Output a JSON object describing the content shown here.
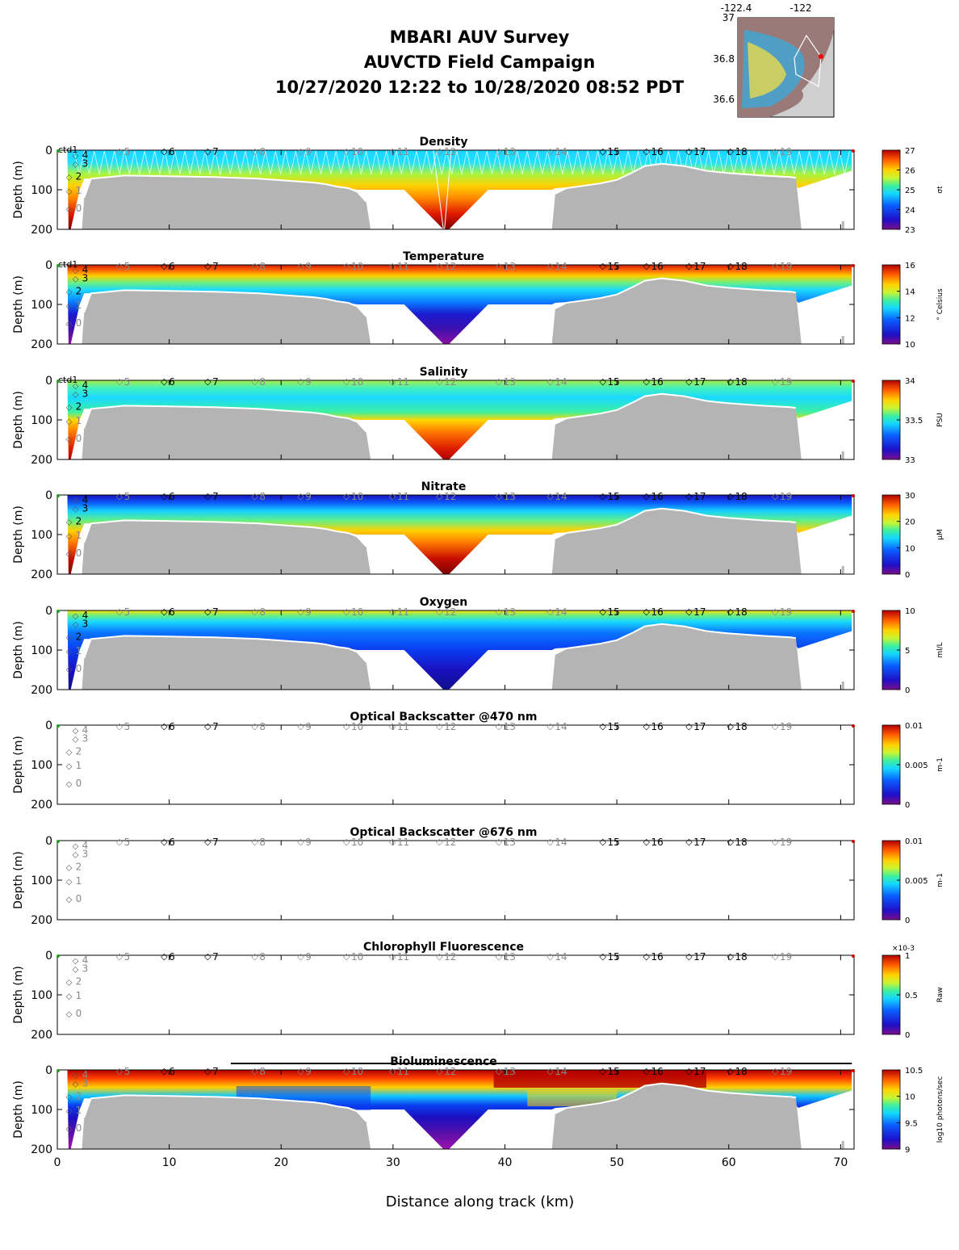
{
  "header": {
    "lines": [
      "MBARI AUV Survey",
      "AUVCTD Field Campaign",
      "10/27/2020 12:22  to 10/28/2020 08:52 PDT"
    ]
  },
  "inset_map": {
    "lon_ticks": [
      "-122.4",
      "-122"
    ],
    "lat_ticks": [
      "37",
      "36.8",
      "36.6"
    ],
    "colors": {
      "land": "#9a7a78",
      "ocean": "#cfcfcf"
    }
  },
  "xaxis": {
    "label": "Distance along track (km)",
    "ticks": [
      0,
      10,
      20,
      30,
      40,
      50,
      60,
      70
    ],
    "range": [
      0,
      71.2
    ]
  },
  "yaxis": {
    "label": "Depth (m)",
    "ticks": [
      0,
      100,
      200
    ],
    "range": [
      0,
      200
    ]
  },
  "profile_markers": {
    "upcast_labels": [
      "ctd1",
      "4",
      "3",
      "2",
      "1",
      "0"
    ],
    "stations": [
      {
        "label": "5",
        "km": 5.6
      },
      {
        "label": "6",
        "km": 9.6
      },
      {
        "label": "7",
        "km": 13.5
      },
      {
        "label": "8",
        "km": 17.7
      },
      {
        "label": "9",
        "km": 21.8
      },
      {
        "label": "10",
        "km": 25.9
      },
      {
        "label": "11",
        "km": 30.0
      },
      {
        "label": "12",
        "km": 34.2
      },
      {
        "label": "13",
        "km": 39.5
      },
      {
        "label": "14",
        "km": 44.1
      },
      {
        "label": "15",
        "km": 48.8
      },
      {
        "label": "16",
        "km": 52.7
      },
      {
        "label": "17",
        "km": 56.5
      },
      {
        "label": "18",
        "km": 60.2
      },
      {
        "label": "19",
        "km": 64.2
      }
    ]
  },
  "chart_data": [
    {
      "type": "heatmap",
      "title": "Density",
      "colorbar": {
        "ticks": [
          "27",
          "26",
          "25",
          "24",
          "23"
        ],
        "unit": "σt"
      },
      "style": "density"
    },
    {
      "type": "heatmap",
      "title": "Temperature",
      "colorbar": {
        "ticks": [
          "16",
          "14",
          "12",
          "10"
        ],
        "unit": "° Celsius"
      },
      "style": "temperature"
    },
    {
      "type": "heatmap",
      "title": "Salinity",
      "colorbar": {
        "ticks": [
          "34",
          "33.5",
          "33"
        ],
        "unit": "PSU"
      },
      "style": "salinity"
    },
    {
      "type": "heatmap",
      "title": "Nitrate",
      "colorbar": {
        "ticks": [
          "30",
          "20",
          "10",
          "0"
        ],
        "unit": "μM"
      },
      "style": "nitrate"
    },
    {
      "type": "heatmap",
      "title": "Oxygen",
      "colorbar": {
        "ticks": [
          "10",
          "5",
          "0"
        ],
        "unit": "ml/L"
      },
      "style": "oxygen"
    },
    {
      "type": "heatmap",
      "title": "Optical Backscatter @470 nm",
      "colorbar": {
        "ticks": [
          "0.01",
          "0.005",
          "0"
        ],
        "unit": "m-1"
      },
      "style": "empty"
    },
    {
      "type": "heatmap",
      "title": "Optical Backscatter @676 nm",
      "colorbar": {
        "ticks": [
          "0.01",
          "0.005",
          "0"
        ],
        "unit": "m-1"
      },
      "style": "empty"
    },
    {
      "type": "heatmap",
      "title": "Chlorophyll Fluorescence",
      "colorbar": {
        "ticks": [
          "1",
          "0.5",
          "0"
        ],
        "unit": "Raw",
        "multiplier": "×10-3"
      },
      "style": "empty"
    },
    {
      "type": "heatmap",
      "title": "Bioluminescence",
      "colorbar": {
        "ticks": [
          "10.5",
          "10",
          "9.5",
          "9"
        ],
        "unit": "log10 photons/sec"
      },
      "style": "biolum"
    }
  ]
}
